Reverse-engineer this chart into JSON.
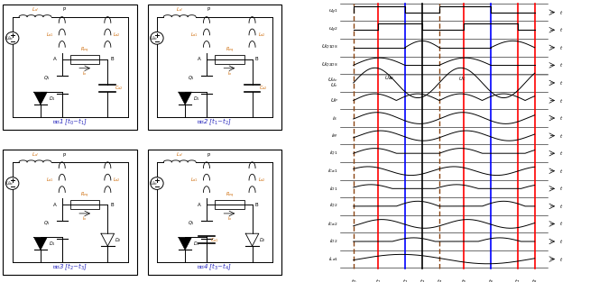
{
  "bg_color": "#ffffff",
  "row_labels": [
    "$u_{g1}$",
    "$u_{g2}$",
    "$U_{Q1DS}$",
    "$U_{Q2DS}$",
    "$U_{dc}$\\n$U_c$",
    "$U_P$",
    "$i_S$",
    "$i_M$",
    "$i_{Q1}$",
    "$i_{Ca1}$",
    "$i_{D1}$",
    "$i_{Q2}$",
    "$i_{Ca2}$",
    "$i_{D2}$",
    "$i_{La1}$"
  ],
  "n_rows": 15,
  "time_labels": [
    "$t_0$",
    "$t_1$",
    "$t_2$",
    "$t_3$",
    "$t_4$",
    "$t_5$",
    "$t_6$",
    "$t_7$",
    "$t_8$"
  ],
  "time_pos": [
    0.3,
    0.95,
    1.65,
    2.1,
    2.55,
    3.2,
    3.9,
    4.6,
    5.05
  ],
  "vline_colors": [
    "#8B4513",
    "#ff0000",
    "#0000ff",
    "#000000",
    "#8B4513",
    "#ff0000",
    "#0000ff",
    "#ff0000",
    "#ff0000"
  ],
  "vline_dashed": [
    true,
    false,
    false,
    false,
    true,
    false,
    false,
    false,
    false
  ],
  "red_color": "#ff0000",
  "blue_color": "#0000ff",
  "brown_color": "#8B4513"
}
